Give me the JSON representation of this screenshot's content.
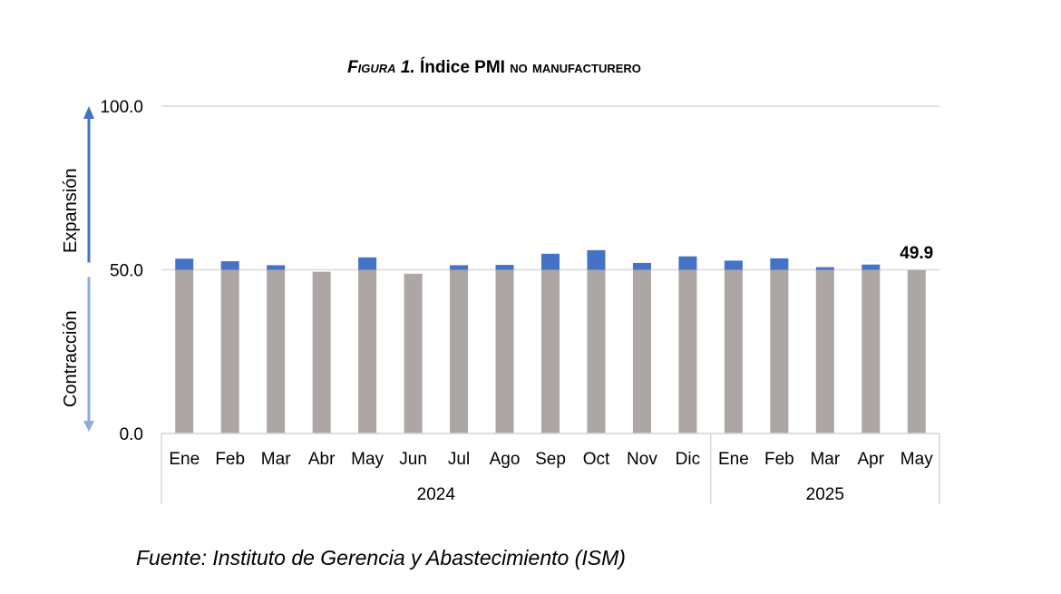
{
  "title": {
    "figure": "Figura 1.",
    "main": "Índice PMI",
    "rest": "no manufacturero"
  },
  "source": "Fuente: Instituto de Gerencia y Abastecimiento (ISM)",
  "chart_data": {
    "type": "bar",
    "stacked": true,
    "baseline": 50,
    "ylim": [
      0,
      100
    ],
    "yticks": [
      "0.0",
      "50.0",
      "100.0"
    ],
    "grid": true,
    "categories": [
      "Ene",
      "Feb",
      "Mar",
      "Abr",
      "May",
      "Jun",
      "Jul",
      "Ago",
      "Sep",
      "Oct",
      "Nov",
      "Dic",
      "Ene",
      "Feb",
      "Mar",
      "Apr",
      "May"
    ],
    "groups": [
      {
        "label": "2024",
        "count": 12
      },
      {
        "label": "2025",
        "count": 5
      }
    ],
    "values": [
      53.4,
      52.6,
      51.4,
      49.4,
      53.8,
      48.8,
      51.4,
      51.5,
      54.9,
      56.0,
      52.1,
      54.1,
      52.8,
      53.5,
      50.8,
      51.6,
      49.9
    ],
    "colors": {
      "contraction": "#aca6a4",
      "expansion": "#4472c4",
      "grid": "#d9d9d9",
      "arrow_up": "#4472c4",
      "arrow_down": "#8faadc"
    },
    "axis_annotations": {
      "upper": "Expansión",
      "lower": "Contracción"
    },
    "data_label": {
      "index": 16,
      "text": "49.9"
    }
  }
}
